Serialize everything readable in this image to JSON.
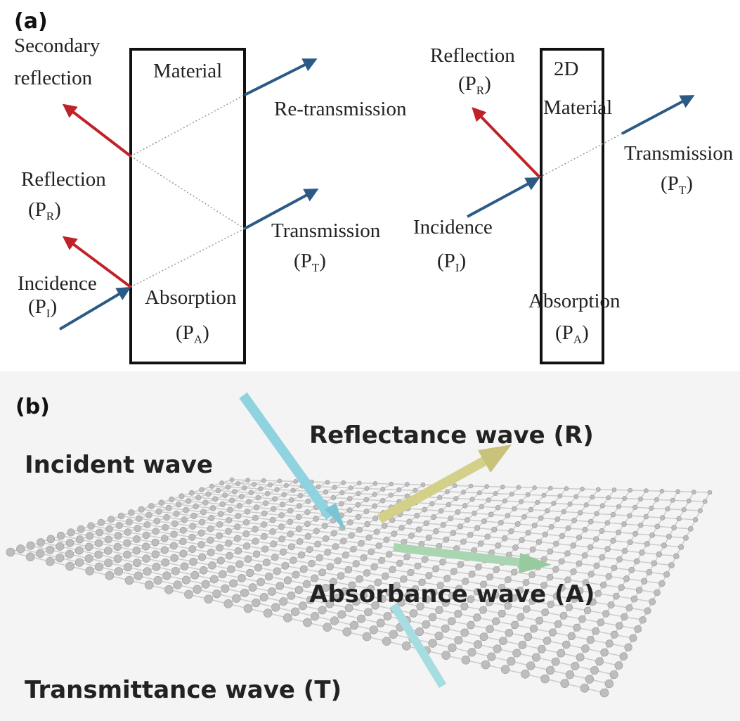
{
  "panel_a": {
    "label": "(a)",
    "left": {
      "secondary_reflection": [
        "Secondary",
        "reflection"
      ],
      "material": "Material",
      "re_transmission": "Re-transmission",
      "reflection": "Reflection",
      "reflection_symbol": [
        "(P",
        "R",
        ")"
      ],
      "incidence": "Incidence",
      "incidence_symbol": [
        "(P",
        "I",
        ")"
      ],
      "transmission": "Transmission",
      "transmission_symbol": [
        "(P",
        "T",
        ")"
      ],
      "absorption": "Absorption",
      "absorption_symbol": [
        "(P",
        "A",
        ")"
      ]
    },
    "right": {
      "reflection": "Reflection",
      "reflection_symbol": [
        "(P",
        "R",
        ")"
      ],
      "material": [
        "2D",
        "Material"
      ],
      "transmission": "Transmission",
      "transmission_symbol": [
        "(P",
        "T",
        ")"
      ],
      "incidence": "Incidence",
      "incidence_symbol": [
        "(P",
        "I",
        ")"
      ],
      "absorption": "Absorption",
      "absorption_symbol": [
        "(P",
        "A",
        ")"
      ]
    }
  },
  "panel_b": {
    "label": "(b)",
    "incident": "Incident wave",
    "reflectance": "Reflectance wave (R)",
    "absorbance": "Absorbance wave (A)",
    "transmittance": "Transmittance wave (T)"
  }
}
